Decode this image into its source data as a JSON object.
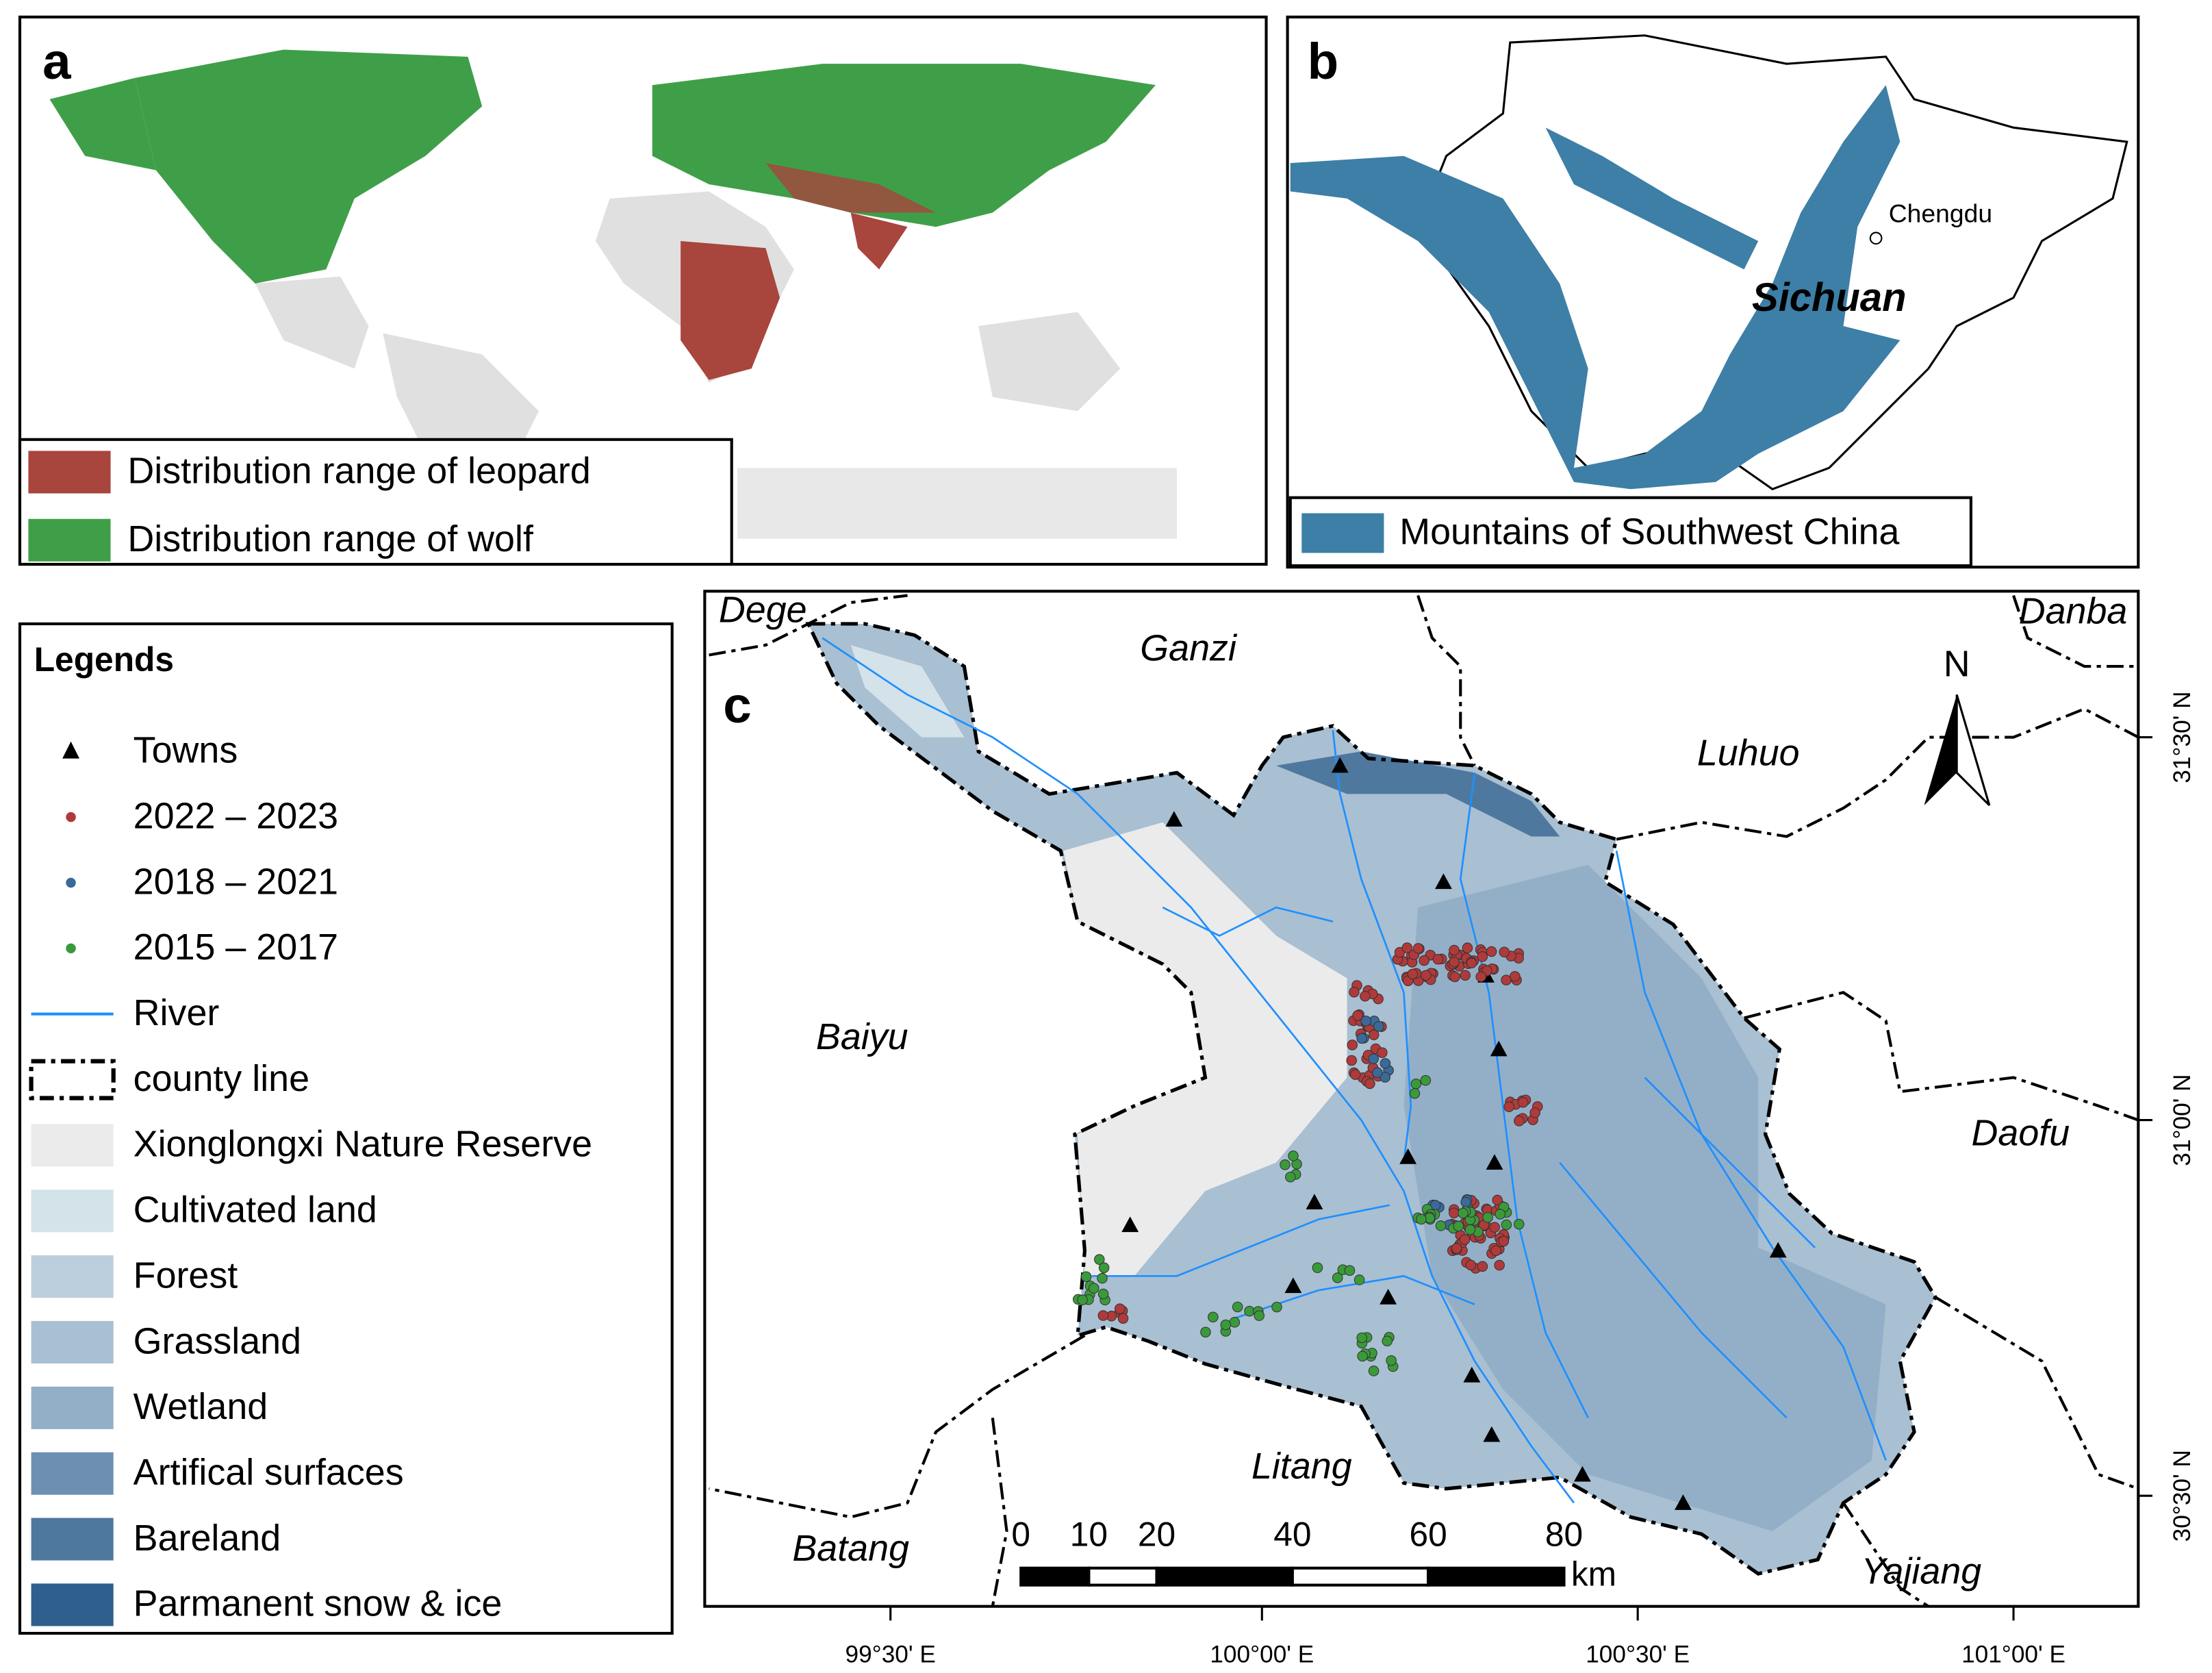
{
  "panel_a": {
    "label": "a",
    "legend": [
      "Distribution range of leopard",
      "Distribution range of wolf"
    ]
  },
  "panel_b": {
    "label": "b",
    "places": [
      "Chengdu",
      "Sichuan"
    ],
    "legend": "Mountains of Southwest China"
  },
  "legend": {
    "title": "Legends",
    "items": [
      "Towns",
      "2022 – 2023",
      "2018 – 2021",
      "2015 – 2017",
      "River",
      "county line",
      "Xionglongxi Nature Reserve",
      "Cultivated land",
      "Forest",
      "Grassland",
      "Wetland",
      "Artifical surfaces",
      "Bareland",
      "Parmanent snow & ice"
    ]
  },
  "panel_c": {
    "label": "c",
    "north": "N",
    "places": [
      "Dege",
      "Ganzi",
      "Danba",
      "Luhuo",
      "Baiyu",
      "Daofu",
      "Litang",
      "Batang",
      "Yajiang"
    ],
    "scale_bar": {
      "ticks": [
        0,
        10,
        20,
        40,
        60,
        80
      ],
      "unit": "km"
    },
    "x_labels": [
      "99°30' E",
      "100°00' E",
      "100°30' E",
      "101°00' E"
    ],
    "y_labels": [
      "31°30' N",
      "31°00' N",
      "30°30' N"
    ]
  }
}
